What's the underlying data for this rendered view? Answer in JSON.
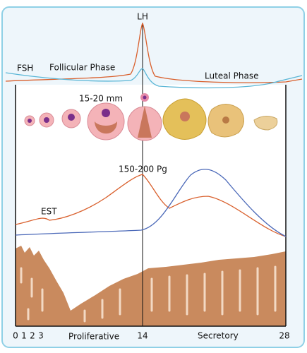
{
  "hormones": {
    "lh": "LH",
    "fsh": "FSH",
    "estrogen": "EST",
    "estrogen_peak": "150-200 Pg"
  },
  "phases": {
    "follicular": "Follicular Phase",
    "luteal": "Luteal Phase",
    "proliferative": "Proliferative",
    "secretory": "Secretory"
  },
  "follicle_size": "15-20 mm",
  "days": [
    0,
    1,
    2,
    3,
    14,
    28
  ]
}
